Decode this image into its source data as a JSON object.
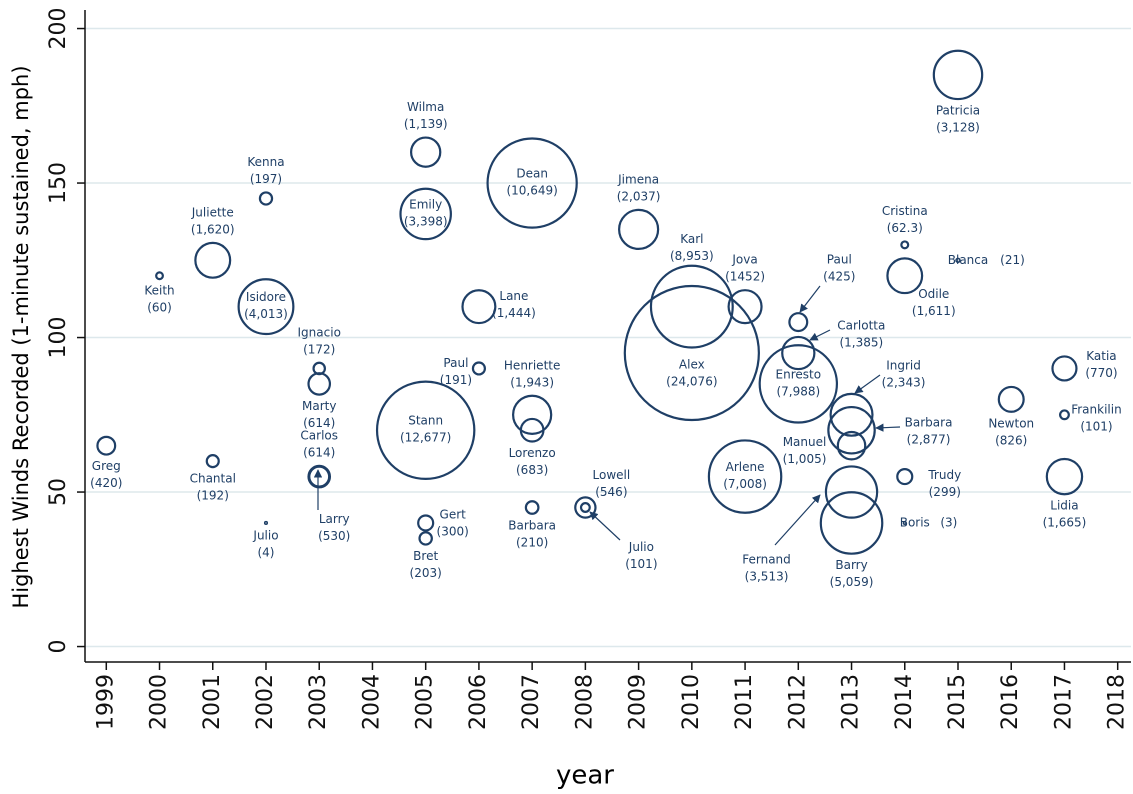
{
  "chart_data": {
    "type": "scatter",
    "x_label": "year",
    "y_label": "Highest Winds Recorded (1-minute sustained, mph)",
    "xlim": [
      1998.6,
      2018.25
    ],
    "ylim": [
      -5,
      206
    ],
    "xticks": [
      1999,
      2000,
      2001,
      2002,
      2003,
      2004,
      2005,
      2006,
      2007,
      2008,
      2009,
      2010,
      2011,
      2012,
      2013,
      2014,
      2015,
      2016,
      2017,
      2018
    ],
    "yticks": [
      0,
      50,
      100,
      150,
      200
    ],
    "grid": true,
    "color": "#1f3f66",
    "series": [
      {
        "labels": [
          "Greg",
          "Keith",
          "Juliette",
          "Chantal",
          "Kenna",
          "Isidore",
          "Julio",
          "Ignacio",
          "Marty",
          "Carlos",
          "Larry",
          "Wilma",
          "Emily",
          "Stann",
          "Gert",
          "Bret",
          "Lane",
          "Paul",
          "Dean",
          "Henriette",
          "Lorenzo",
          "Barbara",
          "Lowell",
          "Julio",
          "Jimena",
          "Karl",
          "Alex",
          "Jova",
          "Arlene",
          "Paul",
          "Carlotta",
          "Enresto",
          "Manuel",
          "Ingrid",
          "Barbara",
          "Fernand",
          "Barry",
          "Cristina",
          "Odile",
          "Trudy",
          "Boris",
          "Blanca",
          "Patricia",
          "Newton",
          "Katia",
          "Frankilin",
          "Lidia"
        ],
        "x": [
          1999,
          2000,
          2001,
          2001,
          2002,
          2002,
          2002,
          2003,
          2003,
          2003,
          2003,
          2005,
          2005,
          2005,
          2005,
          2005,
          2006,
          2006,
          2007,
          2007,
          2007,
          2007,
          2008,
          2008,
          2009,
          2010,
          2010,
          2011,
          2011,
          2012,
          2012,
          2012,
          2013,
          2013,
          2013,
          2013,
          2013,
          2014,
          2014,
          2014,
          2014,
          2015,
          2015,
          2016,
          2017,
          2017,
          2017
        ],
        "values": [
          65,
          120,
          125,
          60,
          145,
          110,
          40,
          90,
          85,
          55,
          55,
          160,
          140,
          70,
          40,
          35,
          110,
          90,
          150,
          75,
          70,
          45,
          45,
          45,
          135,
          110,
          95,
          110,
          55,
          105,
          95,
          85,
          65,
          75,
          70,
          50,
          40,
          130,
          120,
          55,
          40,
          125,
          185,
          80,
          90,
          75,
          55
        ],
        "sizes": [
          420,
          60,
          1620,
          192,
          197,
          4013,
          4,
          172,
          614,
          614,
          530,
          1139,
          3398,
          12677,
          300,
          203,
          1444,
          191,
          10649,
          1943,
          683,
          210,
          546,
          101,
          2037,
          8953,
          24076,
          1452,
          7008,
          425,
          1385,
          7988,
          1005,
          2343,
          2877,
          3513,
          5059,
          62.3,
          1611,
          299,
          3,
          21,
          3128,
          826,
          770,
          101,
          1665
        ],
        "value_labels": [
          "(420)",
          "(60)",
          "(1,620)",
          "(192)",
          "(197)",
          "(4,013)",
          "(4)",
          "(172)",
          "(614)",
          "(614)",
          "(530)",
          "(1,139)",
          "(3,398)",
          "(12,677)",
          "(300)",
          "(203)",
          "(1,444)",
          "(191)",
          "(10,649)",
          "(1,943)",
          "(683)",
          "(210)",
          "(546)",
          "(101)",
          "(2,037)",
          "(8,953)",
          "(24,076)",
          "(1452)",
          "(7,008)",
          "(425)",
          "(1,385)",
          "(7,988)",
          "(1,005)",
          "(2,343)",
          "(2,877)",
          "(3,513)",
          "(5,059)",
          "(62.3)",
          "(1,611)",
          "(299)",
          "(3)",
          "(21)",
          "(3,128)",
          "(826)",
          "(770)",
          "(101)",
          "(1,665)"
        ]
      }
    ]
  }
}
